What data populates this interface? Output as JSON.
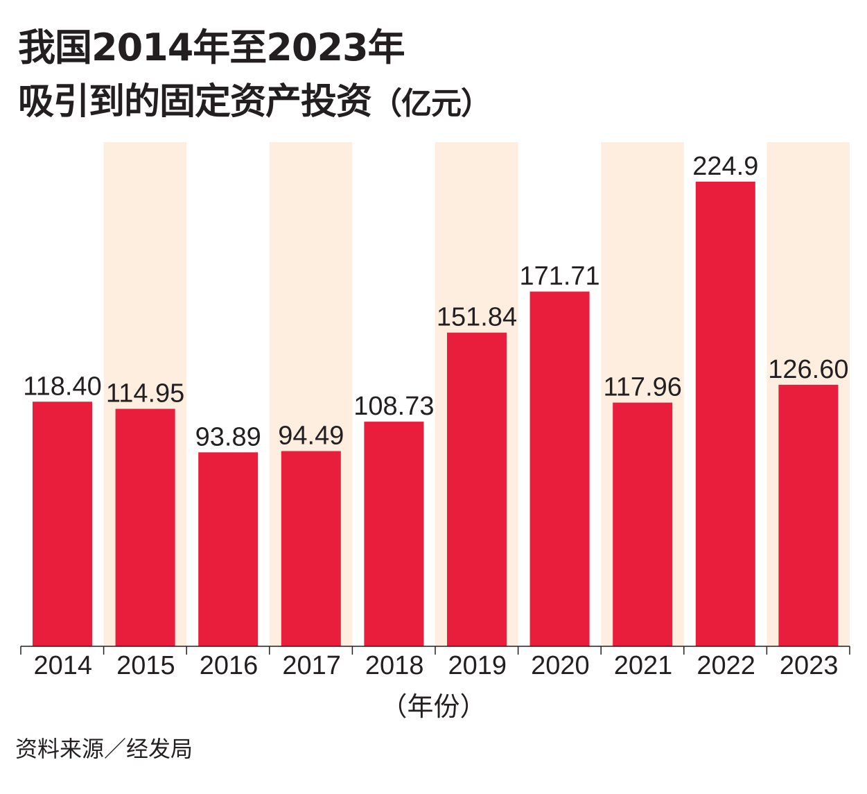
{
  "title": {
    "line1": "我国2014年至2023年",
    "line2_main": "吸引到的固定资产投资",
    "line2_unit": "（亿元）"
  },
  "colors": {
    "bar": "#e91d3c",
    "band": "#fdeee0",
    "axis": "#231f20"
  },
  "chart_data": {
    "type": "bar",
    "title": "我国2014年至2023年吸引到的固定资产投资（亿元）",
    "xlabel": "（年份）",
    "ylabel": "",
    "categories": [
      "2014",
      "2015",
      "2016",
      "2017",
      "2018",
      "2019",
      "2020",
      "2021",
      "2022",
      "2023"
    ],
    "values": [
      118.4,
      114.95,
      93.89,
      94.49,
      108.73,
      151.84,
      171.71,
      117.96,
      224.9,
      126.6
    ],
    "value_labels": [
      "118.40",
      "114.95",
      "93.89",
      "94.49",
      "108.73",
      "151.84",
      "171.71",
      "117.96",
      "224.9",
      "126.60"
    ],
    "ylim": [
      0,
      224.9
    ],
    "grid": false
  },
  "source": "资料来源／经发局"
}
